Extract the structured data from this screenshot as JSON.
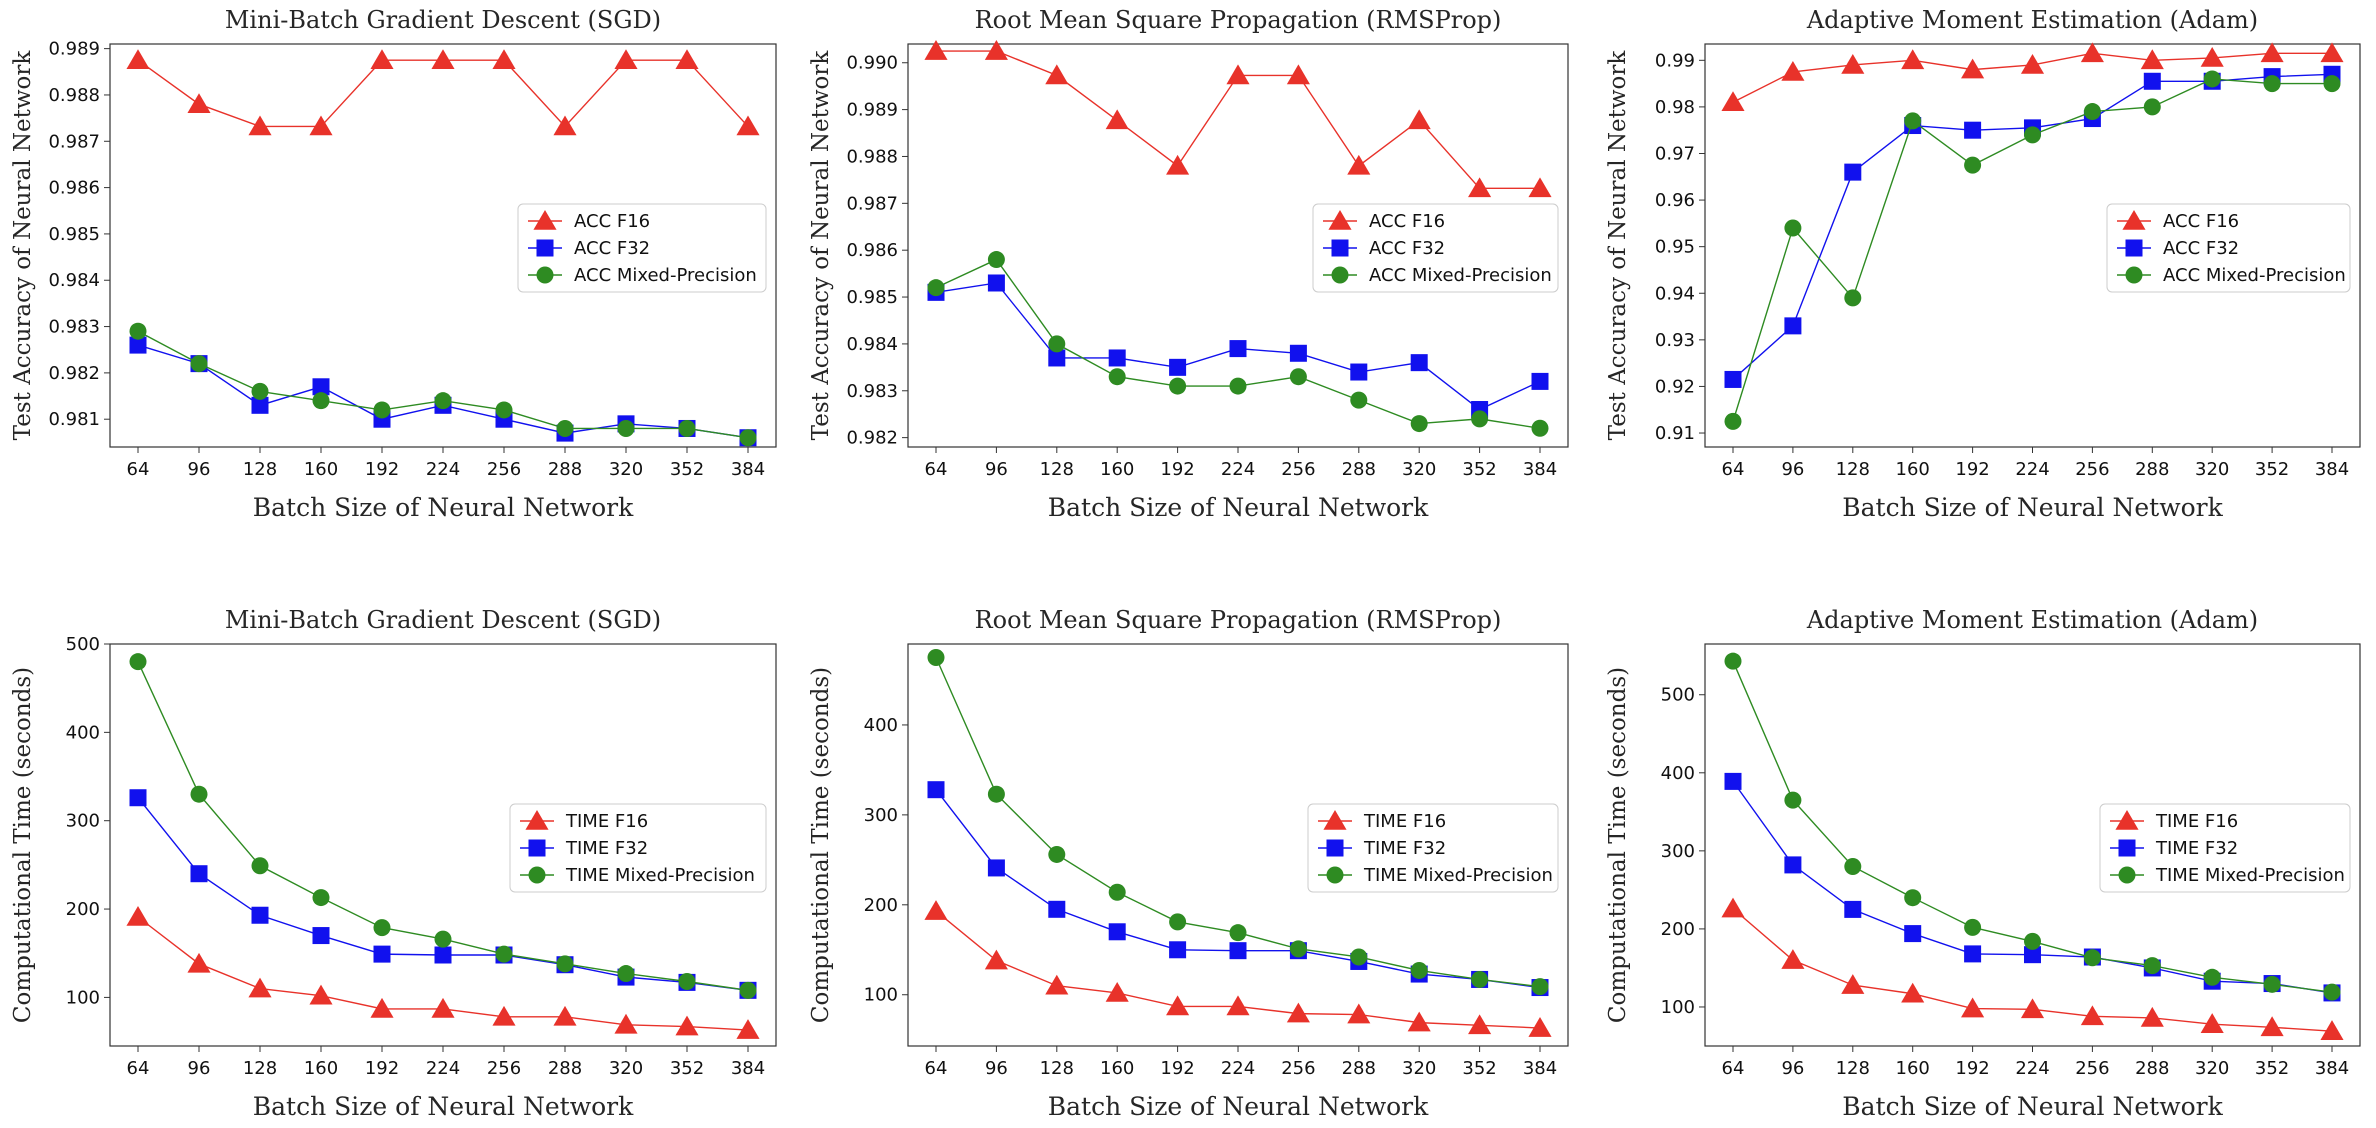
{
  "colors": {
    "f16": "#e8322a",
    "f32": "#1111ee",
    "mixed": "#2e8b22"
  },
  "chart_data": [
    {
      "type": "line",
      "title": "Mini-Batch Gradient Descent (SGD)",
      "xlabel": "Batch Size of Neural Network",
      "ylabel": "Test Accuracy of Neural Network",
      "x": [
        64,
        96,
        128,
        160,
        192,
        224,
        256,
        288,
        320,
        352,
        384
      ],
      "xticks": [
        "64",
        "96",
        "128",
        "160",
        "192",
        "224",
        "256",
        "288",
        "320",
        "352",
        "384"
      ],
      "ylim": [
        0.9804,
        0.9891
      ],
      "yticks": [
        0.981,
        0.982,
        0.983,
        0.984,
        0.985,
        0.986,
        0.987,
        0.988,
        0.989
      ],
      "ytick_labels": [
        "0.981",
        "0.982",
        "0.983",
        "0.984",
        "0.985",
        "0.986",
        "0.987",
        "0.988",
        "0.989"
      ],
      "series": [
        {
          "name": "ACC F16",
          "marker": "triangle",
          "color_key": "f16",
          "values": [
            0.98875,
            0.9878,
            0.98732,
            0.98732,
            0.98875,
            0.98875,
            0.98875,
            0.98732,
            0.98875,
            0.98875,
            0.98732
          ]
        },
        {
          "name": "ACC F32",
          "marker": "square",
          "color_key": "f32",
          "values": [
            0.9826,
            0.9822,
            0.9813,
            0.9817,
            0.981,
            0.9813,
            0.981,
            0.9807,
            0.9809,
            0.9808,
            0.9806
          ]
        },
        {
          "name": "ACC Mixed-Precision",
          "marker": "circle",
          "color_key": "mixed",
          "values": [
            0.9829,
            0.9822,
            0.9816,
            0.9814,
            0.9812,
            0.9814,
            0.9812,
            0.9808,
            0.9808,
            0.9808,
            0.9806
          ]
        }
      ]
    },
    {
      "type": "line",
      "title": "Root Mean Square Propagation (RMSProp)",
      "xlabel": "Batch Size of Neural Network",
      "ylabel": "Test Accuracy of Neural Network",
      "x": [
        64,
        96,
        128,
        160,
        192,
        224,
        256,
        288,
        320,
        352,
        384
      ],
      "xticks": [
        "64",
        "96",
        "128",
        "160",
        "192",
        "224",
        "256",
        "288",
        "320",
        "352",
        "384"
      ],
      "ylim": [
        0.9818,
        0.9904
      ],
      "yticks": [
        0.982,
        0.983,
        0.984,
        0.985,
        0.986,
        0.987,
        0.988,
        0.989,
        0.99
      ],
      "ytick_labels": [
        "0.982",
        "0.983",
        "0.984",
        "0.985",
        "0.986",
        "0.987",
        "0.988",
        "0.989",
        "0.990"
      ],
      "series": [
        {
          "name": "ACC F16",
          "marker": "triangle",
          "color_key": "f16",
          "values": [
            0.99025,
            0.99025,
            0.98973,
            0.98877,
            0.9878,
            0.98973,
            0.98973,
            0.9878,
            0.98877,
            0.98732,
            0.98732
          ]
        },
        {
          "name": "ACC F32",
          "marker": "square",
          "color_key": "f32",
          "values": [
            0.9851,
            0.9853,
            0.9837,
            0.9837,
            0.9835,
            0.9839,
            0.9838,
            0.9834,
            0.9836,
            0.9826,
            0.9832
          ]
        },
        {
          "name": "ACC Mixed-Precision",
          "marker": "circle",
          "color_key": "mixed",
          "values": [
            0.9852,
            0.9858,
            0.984,
            0.9833,
            0.9831,
            0.9831,
            0.9833,
            0.9828,
            0.9823,
            0.9824,
            0.9822
          ]
        }
      ]
    },
    {
      "type": "line",
      "title": "Adaptive Moment Estimation (Adam)",
      "xlabel": "Batch Size of Neural Network",
      "ylabel": "Test Accuracy of Neural Network",
      "x": [
        64,
        96,
        128,
        160,
        192,
        224,
        256,
        288,
        320,
        352,
        384
      ],
      "xticks": [
        "64",
        "96",
        "128",
        "160",
        "192",
        "224",
        "256",
        "288",
        "320",
        "352",
        "384"
      ],
      "ylim": [
        0.907,
        0.9935
      ],
      "yticks": [
        0.91,
        0.92,
        0.93,
        0.94,
        0.95,
        0.96,
        0.97,
        0.98,
        0.99
      ],
      "ytick_labels": [
        "0.91",
        "0.92",
        "0.93",
        "0.94",
        "0.95",
        "0.96",
        "0.97",
        "0.98",
        "0.99"
      ],
      "series": [
        {
          "name": "ACC F16",
          "marker": "triangle",
          "color_key": "f16",
          "values": [
            0.981,
            0.9875,
            0.989,
            0.99,
            0.988,
            0.989,
            0.9915,
            0.99,
            0.9905,
            0.9915,
            0.9915
          ]
        },
        {
          "name": "ACC F32",
          "marker": "square",
          "color_key": "f32",
          "values": [
            0.9215,
            0.933,
            0.966,
            0.976,
            0.975,
            0.9755,
            0.9775,
            0.9855,
            0.9855,
            0.9865,
            0.987
          ]
        },
        {
          "name": "ACC Mixed-Precision",
          "marker": "circle",
          "color_key": "mixed",
          "values": [
            0.9125,
            0.954,
            0.939,
            0.977,
            0.9675,
            0.974,
            0.979,
            0.98,
            0.986,
            0.985,
            0.985
          ]
        }
      ]
    },
    {
      "type": "line",
      "title": "Mini-Batch Gradient Descent (SGD)",
      "xlabel": "Batch Size of Neural Network",
      "ylabel": "Computational Time (seconds)",
      "x": [
        64,
        96,
        128,
        160,
        192,
        224,
        256,
        288,
        320,
        352,
        384
      ],
      "xticks": [
        "64",
        "96",
        "128",
        "160",
        "192",
        "224",
        "256",
        "288",
        "320",
        "352",
        "384"
      ],
      "ylim": [
        45,
        500
      ],
      "yticks": [
        100,
        200,
        300,
        400,
        500
      ],
      "ytick_labels": [
        "100",
        "200",
        "300",
        "400",
        "500"
      ],
      "series": [
        {
          "name": "TIME F16",
          "marker": "triangle",
          "color_key": "f16",
          "values": [
            191,
            138,
            110,
            102,
            87,
            87,
            78,
            78,
            69,
            67,
            63
          ]
        },
        {
          "name": "TIME F32",
          "marker": "square",
          "color_key": "f32",
          "values": [
            326,
            240,
            193,
            170,
            149,
            148,
            148,
            137,
            123,
            117,
            108
          ]
        },
        {
          "name": "TIME Mixed-Precision",
          "marker": "circle",
          "color_key": "mixed",
          "values": [
            480,
            330,
            249,
            213,
            179,
            166,
            149,
            138,
            127,
            118,
            108
          ]
        }
      ]
    },
    {
      "type": "line",
      "title": "Root Mean Square Propagation (RMSProp)",
      "xlabel": "Batch Size of Neural Network",
      "ylabel": "Computational Time (seconds)",
      "x": [
        64,
        96,
        128,
        160,
        192,
        224,
        256,
        288,
        320,
        352,
        384
      ],
      "xticks": [
        "64",
        "96",
        "128",
        "160",
        "192",
        "224",
        "256",
        "288",
        "320",
        "352",
        "384"
      ],
      "ylim": [
        43,
        490
      ],
      "yticks": [
        100,
        200,
        300,
        400
      ],
      "ytick_labels": [
        "100",
        "200",
        "300",
        "400"
      ],
      "series": [
        {
          "name": "TIME F16",
          "marker": "triangle",
          "color_key": "f16",
          "values": [
            193,
            138,
            110,
            102,
            87,
            87,
            79,
            78,
            69,
            66,
            63
          ]
        },
        {
          "name": "TIME F32",
          "marker": "square",
          "color_key": "f32",
          "values": [
            328,
            241,
            195,
            170,
            150,
            149,
            149,
            137,
            123,
            117,
            108
          ]
        },
        {
          "name": "TIME Mixed-Precision",
          "marker": "circle",
          "color_key": "mixed",
          "values": [
            475,
            323,
            256,
            214,
            181,
            169,
            151,
            142,
            127,
            117,
            109
          ]
        }
      ]
    },
    {
      "type": "line",
      "title": "Adaptive Moment Estimation (Adam)",
      "xlabel": "Batch Size of Neural Network",
      "ylabel": "Computational Time (seconds)",
      "x": [
        64,
        96,
        128,
        160,
        192,
        224,
        256,
        288,
        320,
        352,
        384
      ],
      "xticks": [
        "64",
        "96",
        "128",
        "160",
        "192",
        "224",
        "256",
        "288",
        "320",
        "352",
        "384"
      ],
      "ylim": [
        50,
        565
      ],
      "yticks": [
        100,
        200,
        300,
        400,
        500
      ],
      "ytick_labels": [
        "100",
        "200",
        "300",
        "400",
        "500"
      ],
      "series": [
        {
          "name": "TIME F16",
          "marker": "triangle",
          "color_key": "f16",
          "values": [
            226,
            160,
            128,
            117,
            98,
            97,
            88,
            86,
            78,
            74,
            69
          ]
        },
        {
          "name": "TIME F32",
          "marker": "square",
          "color_key": "f32",
          "values": [
            389,
            282,
            225,
            194,
            168,
            167,
            164,
            150,
            133,
            130,
            118
          ]
        },
        {
          "name": "TIME Mixed-Precision",
          "marker": "circle",
          "color_key": "mixed",
          "values": [
            543,
            365,
            280,
            240,
            202,
            184,
            163,
            153,
            138,
            129,
            119
          ]
        }
      ]
    }
  ]
}
